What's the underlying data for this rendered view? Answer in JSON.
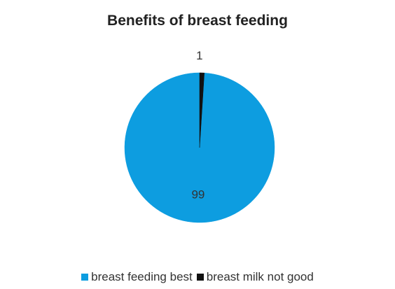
{
  "chart_data": {
    "type": "pie",
    "title": "Benefits of breast feeding",
    "slices": [
      {
        "label": "breast feeding best",
        "value": 99,
        "color": "#0d9de0"
      },
      {
        "label": "breast milk not good",
        "value": 1,
        "color": "#111111"
      }
    ],
    "data_labels": [
      "99",
      "1"
    ],
    "legend_position": "bottom"
  }
}
